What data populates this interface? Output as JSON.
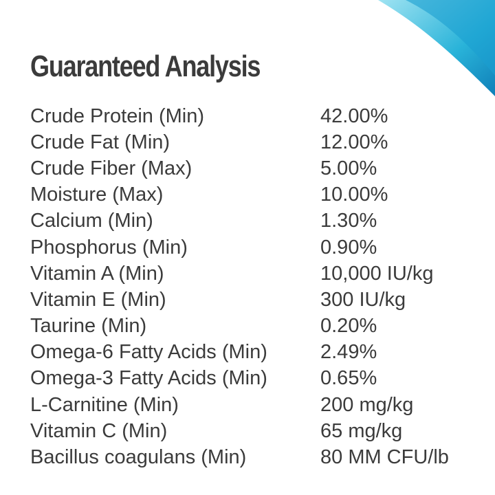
{
  "header": {
    "title": "Guaranteed Analysis"
  },
  "table": {
    "rows": [
      [
        "Crude Protein (Min)",
        "42.00%"
      ],
      [
        "Crude Fat (Min)",
        "12.00%"
      ],
      [
        "Crude Fiber (Max)",
        "5.00%"
      ],
      [
        "Moisture (Max)",
        "10.00%"
      ],
      [
        "Calcium (Min)",
        "1.30%"
      ],
      [
        "Phosphorus (Min)",
        "0.90%"
      ],
      [
        "Vitamin A (Min)",
        "10,000 IU/kg"
      ],
      [
        "Vitamin E (Min)",
        "300 IU/kg"
      ],
      [
        "Taurine (Min)",
        "0.20%"
      ],
      [
        "Omega-6 Fatty Acids (Min)",
        "2.49%"
      ],
      [
        "Omega-3 Fatty Acids (Min)",
        "0.65%"
      ],
      [
        "L-Carnitine (Min)",
        "200 mg/kg"
      ],
      [
        "Vitamin C (Min)",
        "65 mg/kg"
      ],
      [
        "Bacillus coagulans (Min)",
        "80 MM CFU/lb"
      ]
    ]
  }
}
